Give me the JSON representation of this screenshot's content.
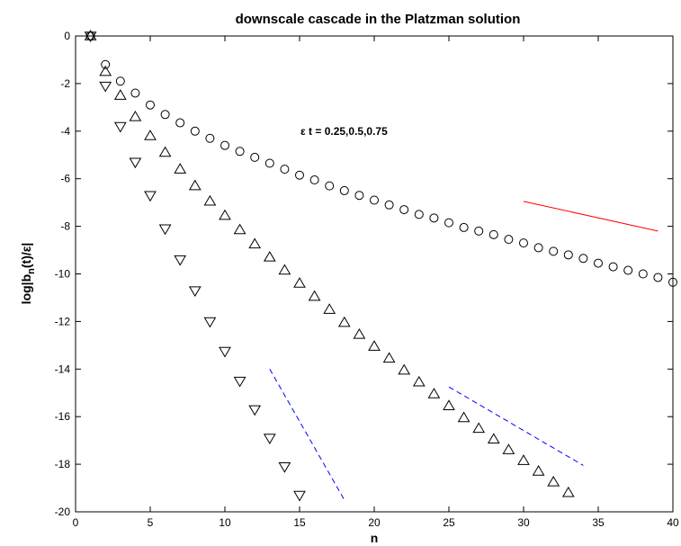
{
  "chart_data": {
    "type": "scatter",
    "title": "downscale cascade in the Platzman solution",
    "xlabel": "n",
    "ylabel_parts": [
      "log|b",
      "n",
      "(t)/ε|"
    ],
    "xlim": [
      0,
      40
    ],
    "ylim": [
      -20,
      0
    ],
    "xticks": [
      "0",
      "5",
      "10",
      "15",
      "20",
      "25",
      "30",
      "35",
      "40"
    ],
    "yticks": [
      "0",
      "-2",
      "-4",
      "-6",
      "-8",
      "-10",
      "-12",
      "-14",
      "-16",
      "-18",
      "-20"
    ],
    "grid": false,
    "annotation": "ε t = 0.25,0.5,0.75",
    "series": [
      {
        "marker": "circle",
        "x": [
          1,
          2,
          3,
          4,
          5,
          6,
          7,
          8,
          9,
          10,
          11,
          12,
          13,
          14,
          15,
          16,
          17,
          18,
          19,
          20,
          21,
          22,
          23,
          24,
          25,
          26,
          27,
          28,
          29,
          30,
          31,
          32,
          33,
          34,
          35,
          36,
          37,
          38,
          39,
          40
        ],
        "y": [
          0.0,
          -1.2,
          -1.9,
          -2.4,
          -2.9,
          -3.3,
          -3.65,
          -4.0,
          -4.3,
          -4.6,
          -4.85,
          -5.1,
          -5.35,
          -5.6,
          -5.85,
          -6.05,
          -6.3,
          -6.5,
          -6.7,
          -6.9,
          -7.1,
          -7.3,
          -7.5,
          -7.65,
          -7.85,
          -8.05,
          -8.2,
          -8.35,
          -8.55,
          -8.7,
          -8.9,
          -9.05,
          -9.2,
          -9.35,
          -9.55,
          -9.7,
          -9.85,
          -10.0,
          -10.15,
          -10.35
        ]
      },
      {
        "marker": "triangle-up",
        "x": [
          1,
          2,
          3,
          4,
          5,
          6,
          7,
          8,
          9,
          10,
          11,
          12,
          13,
          14,
          15,
          16,
          17,
          18,
          19,
          20,
          21,
          22,
          23,
          24,
          25,
          26,
          27,
          28,
          29,
          30,
          31,
          32,
          33
        ],
        "y": [
          0.0,
          -1.5,
          -2.5,
          -3.4,
          -4.2,
          -4.9,
          -5.6,
          -6.3,
          -6.95,
          -7.55,
          -8.15,
          -8.75,
          -9.3,
          -9.85,
          -10.4,
          -10.95,
          -11.5,
          -12.05,
          -12.55,
          -13.05,
          -13.55,
          -14.05,
          -14.55,
          -15.05,
          -15.55,
          -16.05,
          -16.5,
          -16.95,
          -17.4,
          -17.85,
          -18.3,
          -18.75,
          -19.2
        ]
      },
      {
        "marker": "triangle-down",
        "x": [
          1,
          2,
          3,
          4,
          5,
          6,
          7,
          8,
          9,
          10,
          11,
          12,
          13,
          14,
          15
        ],
        "y": [
          0.0,
          -2.1,
          -3.8,
          -5.3,
          -6.7,
          -8.1,
          -9.4,
          -10.7,
          -12.0,
          -13.25,
          -14.5,
          -15.7,
          -16.9,
          -18.1,
          -19.3
        ]
      }
    ],
    "reference_lines": [
      {
        "color": "#ff0000",
        "style": "solid",
        "x": [
          30,
          39
        ],
        "y": [
          -6.95,
          -8.2
        ]
      },
      {
        "color": "#0000ff",
        "style": "dashed",
        "x": [
          25,
          34
        ],
        "y": [
          -14.75,
          -18.05
        ]
      },
      {
        "color": "#0000ff",
        "style": "dashed",
        "x": [
          13,
          18
        ],
        "y": [
          -14.0,
          -19.5
        ]
      }
    ]
  }
}
